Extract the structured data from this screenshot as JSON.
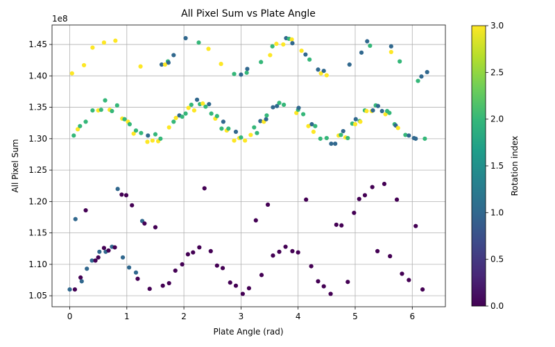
{
  "chart_data": {
    "type": "scatter",
    "title": "All Pixel Sum vs Plate Angle",
    "xlabel": "Plate Angle (rad)",
    "ylabel": "All Pixel Sum",
    "y_offset_label": "1e8",
    "xlim": [
      -0.31,
      6.58
    ],
    "ylim": [
      1.0325,
      1.481
    ],
    "x_ticks": [
      0,
      1,
      2,
      3,
      4,
      5,
      6
    ],
    "x_tick_labels": [
      "0",
      "1",
      "2",
      "3",
      "4",
      "5",
      "6"
    ],
    "y_ticks": [
      1.05,
      1.1,
      1.15,
      1.2,
      1.25,
      1.3,
      1.35,
      1.4,
      1.45
    ],
    "y_tick_labels": [
      "1.05",
      "1.10",
      "1.15",
      "1.20",
      "1.25",
      "1.30",
      "1.35",
      "1.40",
      "1.45"
    ],
    "grid": true,
    "colorbar": {
      "label": "Rotation index",
      "range": [
        0,
        3
      ],
      "ticks": [
        0,
        0.5,
        1,
        1.5,
        2,
        2.5,
        3
      ],
      "tick_labels": [
        "0.0",
        "0.5",
        "1.0",
        "1.5",
        "2.0",
        "2.5",
        "3.0"
      ],
      "colormap": "viridis",
      "stops": [
        "#440154",
        "#482878",
        "#3e4989",
        "#31688e",
        "#26828e",
        "#1f9e89",
        "#35b779",
        "#6ece58",
        "#b5de2b",
        "#fde725"
      ]
    },
    "points": [
      [
        0.0,
        1.06,
        1
      ],
      [
        0.09,
        1.06,
        0
      ],
      [
        0.19,
        1.079,
        0
      ],
      [
        0.21,
        1.073,
        1
      ],
      [
        0.3,
        1.093,
        1
      ],
      [
        0.39,
        1.106,
        1
      ],
      [
        0.45,
        1.106,
        0
      ],
      [
        0.5,
        1.111,
        0
      ],
      [
        0.52,
        1.12,
        1
      ],
      [
        0.6,
        1.126,
        0
      ],
      [
        0.63,
        1.12,
        1
      ],
      [
        0.68,
        1.122,
        0
      ],
      [
        0.74,
        1.128,
        1
      ],
      [
        0.79,
        1.127,
        0
      ],
      [
        0.93,
        1.111,
        1
      ],
      [
        1.04,
        1.095,
        1
      ],
      [
        1.16,
        1.087,
        1
      ],
      [
        1.19,
        1.077,
        0
      ],
      [
        1.4,
        1.061,
        0
      ],
      [
        1.63,
        1.066,
        0
      ],
      [
        1.74,
        1.07,
        0
      ],
      [
        1.85,
        1.09,
        0
      ],
      [
        1.97,
        1.1,
        0
      ],
      [
        2.07,
        1.116,
        0
      ],
      [
        2.16,
        1.119,
        0
      ],
      [
        2.27,
        1.127,
        0
      ],
      [
        2.47,
        1.121,
        0
      ],
      [
        2.58,
        1.098,
        0
      ],
      [
        2.68,
        1.094,
        0
      ],
      [
        2.81,
        1.071,
        0
      ],
      [
        2.91,
        1.066,
        0
      ],
      [
        3.03,
        1.053,
        0
      ],
      [
        3.14,
        1.062,
        0
      ],
      [
        3.36,
        1.083,
        0
      ],
      [
        3.56,
        1.114,
        0
      ],
      [
        3.67,
        1.12,
        0
      ],
      [
        3.78,
        1.128,
        0
      ],
      [
        3.9,
        1.121,
        0
      ],
      [
        4.0,
        1.119,
        0
      ],
      [
        4.23,
        1.097,
        0
      ],
      [
        4.35,
        1.073,
        0
      ],
      [
        4.45,
        1.065,
        0
      ],
      [
        4.57,
        1.053,
        0
      ],
      [
        4.87,
        1.072,
        0
      ],
      [
        5.39,
        1.121,
        0
      ],
      [
        5.61,
        1.113,
        0
      ],
      [
        5.82,
        1.085,
        0
      ],
      [
        5.94,
        1.075,
        0
      ],
      [
        6.18,
        1.06,
        0
      ],
      [
        0.1,
        1.172,
        1
      ],
      [
        0.28,
        1.186,
        0
      ],
      [
        0.84,
        1.22,
        1
      ],
      [
        0.91,
        1.211,
        0
      ],
      [
        0.99,
        1.21,
        0
      ],
      [
        1.09,
        1.194,
        0
      ],
      [
        1.27,
        1.169,
        1
      ],
      [
        1.31,
        1.165,
        0
      ],
      [
        1.5,
        1.159,
        0
      ],
      [
        2.36,
        1.221,
        0
      ],
      [
        3.26,
        1.17,
        0
      ],
      [
        3.47,
        1.195,
        0
      ],
      [
        4.14,
        1.203,
        0
      ],
      [
        4.67,
        1.163,
        0
      ],
      [
        4.76,
        1.162,
        0
      ],
      [
        4.98,
        1.182,
        0
      ],
      [
        5.07,
        1.204,
        0
      ],
      [
        5.17,
        1.21,
        0
      ],
      [
        5.3,
        1.223,
        0
      ],
      [
        5.51,
        1.228,
        0
      ],
      [
        5.73,
        1.203,
        0
      ],
      [
        6.06,
        1.161,
        0
      ],
      [
        0.07,
        1.305,
        2
      ],
      [
        0.14,
        1.315,
        3
      ],
      [
        0.18,
        1.32,
        2
      ],
      [
        0.28,
        1.327,
        2
      ],
      [
        0.4,
        1.345,
        2
      ],
      [
        0.5,
        1.345,
        3
      ],
      [
        0.55,
        1.346,
        2
      ],
      [
        0.62,
        1.361,
        2
      ],
      [
        0.7,
        1.346,
        3
      ],
      [
        0.74,
        1.344,
        2
      ],
      [
        0.83,
        1.353,
        2
      ],
      [
        0.92,
        1.332,
        3
      ],
      [
        0.96,
        1.331,
        2
      ],
      [
        1.02,
        1.327,
        3
      ],
      [
        1.05,
        1.323,
        2
      ],
      [
        1.12,
        1.308,
        3
      ],
      [
        1.16,
        1.313,
        2
      ],
      [
        1.25,
        1.309,
        2
      ],
      [
        1.36,
        1.295,
        3
      ],
      [
        1.37,
        1.305,
        1
      ],
      [
        1.45,
        1.297,
        3
      ],
      [
        1.5,
        1.307,
        2
      ],
      [
        1.55,
        1.296,
        3
      ],
      [
        1.59,
        1.3,
        2
      ],
      [
        1.74,
        1.318,
        3
      ],
      [
        1.82,
        1.327,
        2
      ],
      [
        1.86,
        1.333,
        3
      ],
      [
        1.92,
        1.337,
        1
      ],
      [
        1.97,
        1.335,
        2
      ],
      [
        2.03,
        1.34,
        2
      ],
      [
        2.08,
        1.349,
        3
      ],
      [
        2.13,
        1.354,
        2
      ],
      [
        2.18,
        1.345,
        3
      ],
      [
        2.23,
        1.362,
        1
      ],
      [
        2.28,
        1.355,
        2
      ],
      [
        2.33,
        1.356,
        3
      ],
      [
        2.38,
        1.351,
        2
      ],
      [
        2.44,
        1.355,
        1
      ],
      [
        2.48,
        1.34,
        2
      ],
      [
        2.55,
        1.332,
        3
      ],
      [
        2.58,
        1.336,
        2
      ],
      [
        2.66,
        1.316,
        2
      ],
      [
        2.69,
        1.327,
        1
      ],
      [
        2.75,
        1.313,
        3
      ],
      [
        2.78,
        1.316,
        2
      ],
      [
        2.88,
        1.297,
        3
      ],
      [
        2.91,
        1.311,
        1
      ],
      [
        2.97,
        1.301,
        3
      ],
      [
        3.0,
        1.302,
        2
      ],
      [
        3.07,
        1.297,
        3
      ],
      [
        3.17,
        1.306,
        3
      ],
      [
        3.23,
        1.318,
        2
      ],
      [
        3.28,
        1.309,
        2
      ],
      [
        3.34,
        1.328,
        1
      ],
      [
        3.4,
        1.327,
        3
      ],
      [
        3.44,
        1.331,
        1
      ],
      [
        3.45,
        1.337,
        2
      ],
      [
        3.56,
        1.35,
        1
      ],
      [
        3.63,
        1.352,
        1
      ],
      [
        3.67,
        1.357,
        2
      ],
      [
        3.75,
        1.354,
        2
      ],
      [
        3.97,
        1.341,
        3
      ],
      [
        4.0,
        1.346,
        2
      ],
      [
        4.01,
        1.349,
        1
      ],
      [
        4.09,
        1.339,
        2
      ],
      [
        4.18,
        1.32,
        3
      ],
      [
        4.24,
        1.323,
        1
      ],
      [
        4.27,
        1.311,
        3
      ],
      [
        4.3,
        1.32,
        2
      ],
      [
        4.39,
        1.3,
        2
      ],
      [
        4.5,
        1.301,
        2
      ],
      [
        4.58,
        1.292,
        1
      ],
      [
        4.65,
        1.292,
        1
      ],
      [
        4.71,
        1.305,
        3
      ],
      [
        4.75,
        1.306,
        2
      ],
      [
        4.79,
        1.312,
        1
      ],
      [
        4.83,
        1.302,
        3
      ],
      [
        4.87,
        1.301,
        2
      ],
      [
        4.95,
        1.324,
        2
      ],
      [
        5.0,
        1.323,
        3
      ],
      [
        5.01,
        1.331,
        1
      ],
      [
        5.08,
        1.328,
        2
      ],
      [
        5.09,
        1.327,
        3
      ],
      [
        5.17,
        1.345,
        2
      ],
      [
        5.2,
        1.344,
        3
      ],
      [
        5.29,
        1.344,
        3
      ],
      [
        5.31,
        1.345,
        1
      ],
      [
        5.36,
        1.353,
        2
      ],
      [
        5.4,
        1.352,
        1
      ],
      [
        5.47,
        1.344,
        1
      ],
      [
        5.53,
        1.339,
        3
      ],
      [
        5.56,
        1.344,
        2
      ],
      [
        5.6,
        1.341,
        2
      ],
      [
        5.69,
        1.323,
        2
      ],
      [
        5.71,
        1.321,
        1
      ],
      [
        5.75,
        1.317,
        3
      ],
      [
        5.88,
        1.306,
        2
      ],
      [
        5.94,
        1.305,
        1
      ],
      [
        6.03,
        1.301,
        1
      ],
      [
        6.06,
        1.3,
        1
      ],
      [
        6.22,
        1.3,
        2
      ],
      [
        0.04,
        1.404,
        3
      ],
      [
        0.25,
        1.417,
        3
      ],
      [
        0.4,
        1.445,
        3
      ],
      [
        0.6,
        1.453,
        3
      ],
      [
        0.8,
        1.456,
        3
      ],
      [
        1.24,
        1.415,
        3
      ],
      [
        1.61,
        1.418,
        1
      ],
      [
        1.67,
        1.418,
        3
      ],
      [
        1.72,
        1.423,
        2
      ],
      [
        1.73,
        1.421,
        1
      ],
      [
        1.82,
        1.433,
        1
      ],
      [
        2.03,
        1.46,
        1
      ],
      [
        2.26,
        1.453,
        2
      ],
      [
        2.43,
        1.443,
        3
      ],
      [
        2.65,
        1.419,
        3
      ],
      [
        2.88,
        1.403,
        2
      ],
      [
        3.0,
        1.402,
        1
      ],
      [
        3.1,
        1.405,
        2
      ],
      [
        3.11,
        1.411,
        1
      ],
      [
        3.35,
        1.422,
        2
      ],
      [
        3.51,
        1.433,
        3
      ],
      [
        3.55,
        1.447,
        2
      ],
      [
        3.62,
        1.451,
        3
      ],
      [
        3.74,
        1.45,
        3
      ],
      [
        3.79,
        1.46,
        1
      ],
      [
        3.84,
        1.459,
        2
      ],
      [
        3.89,
        1.458,
        3
      ],
      [
        3.9,
        1.452,
        1
      ],
      [
        4.06,
        1.44,
        3
      ],
      [
        4.13,
        1.434,
        1
      ],
      [
        4.2,
        1.426,
        2
      ],
      [
        4.35,
        1.41,
        1
      ],
      [
        4.4,
        1.404,
        3
      ],
      [
        4.45,
        1.408,
        1
      ],
      [
        4.5,
        1.401,
        3
      ],
      [
        4.9,
        1.418,
        1
      ],
      [
        5.11,
        1.437,
        1
      ],
      [
        5.21,
        1.455,
        1
      ],
      [
        5.26,
        1.448,
        2
      ],
      [
        5.63,
        1.447,
        1
      ],
      [
        5.63,
        1.438,
        3
      ],
      [
        5.78,
        1.423,
        2
      ],
      [
        6.1,
        1.392,
        2
      ],
      [
        6.16,
        1.399,
        1
      ],
      [
        6.26,
        1.406,
        1
      ]
    ]
  }
}
